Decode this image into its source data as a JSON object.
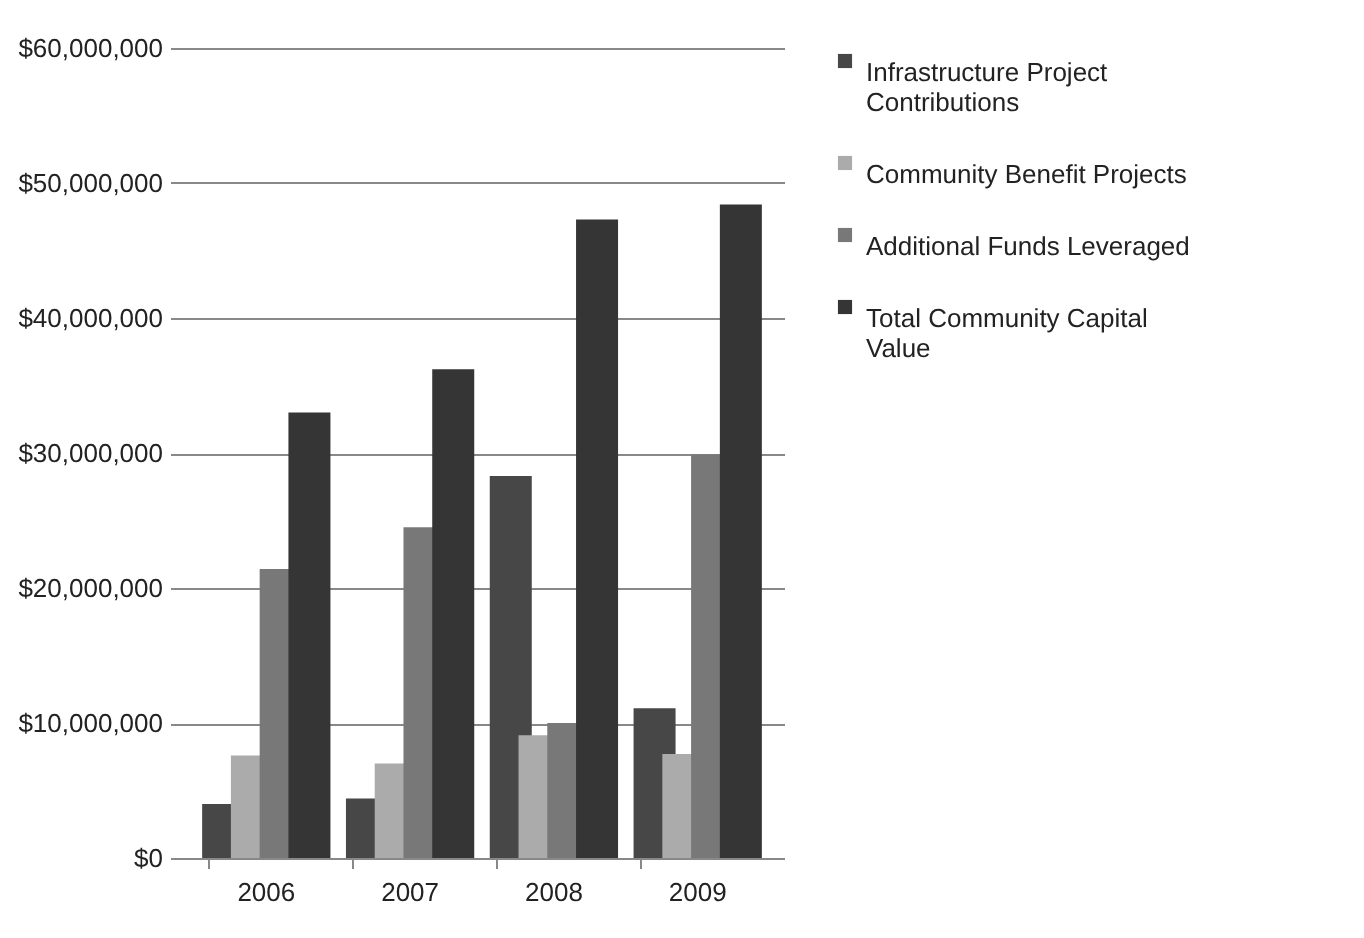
{
  "chart_data": {
    "type": "bar",
    "categories": [
      "2006",
      "2007",
      "2008",
      "2009"
    ],
    "series": [
      {
        "name": "Infrastructure Project Contributions",
        "color": "#474747",
        "values": [
          4000000,
          4400000,
          28300000,
          11100000
        ]
      },
      {
        "name": "Community Benefit Projects",
        "color": "#ababab",
        "values": [
          7600000,
          7000000,
          9100000,
          7700000
        ]
      },
      {
        "name": "Additional Funds Leveraged",
        "color": "#787878",
        "values": [
          21400000,
          24500000,
          10000000,
          29900000
        ]
      },
      {
        "name": "Total Community Capital Value",
        "color": "#353535",
        "values": [
          33000000,
          36200000,
          47300000,
          48400000
        ]
      }
    ],
    "ylim": [
      0,
      60000000
    ],
    "yticks": [
      {
        "value": 0,
        "label": "$0"
      },
      {
        "value": 10000000,
        "label": "$10,000,000"
      },
      {
        "value": 20000000,
        "label": "$20,000,000"
      },
      {
        "value": 30000000,
        "label": "$30,000,000"
      },
      {
        "value": 40000000,
        "label": "$40,000,000"
      },
      {
        "value": 50000000,
        "label": "$50,000,000"
      },
      {
        "value": 60000000,
        "label": "$60,000,000"
      }
    ],
    "grid": "y",
    "legend": "right"
  }
}
